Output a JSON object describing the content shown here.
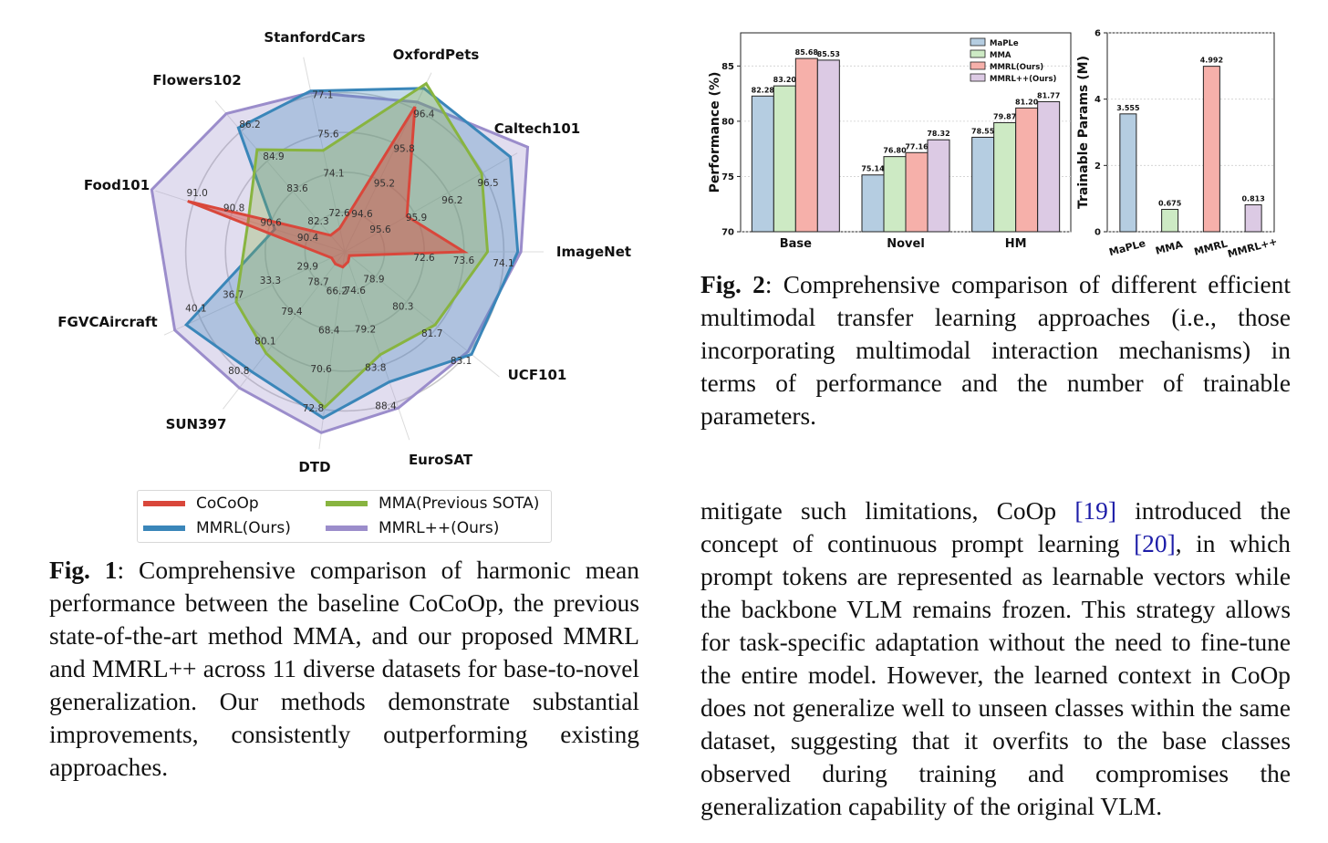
{
  "fig1": {
    "chart_data": {
      "type": "radar",
      "axes": [
        "ImageNet",
        "Caltech101",
        "OxfordPets",
        "StanfordCars",
        "Flowers102",
        "Food101",
        "FGVCAircraft",
        "SUN397",
        "DTD",
        "EuroSAT",
        "UCF101"
      ],
      "rings": [
        [
          "72.6",
          "73.6",
          "74.1"
        ],
        [
          "95.9",
          "96.2",
          "96.5"
        ],
        [
          "95.2",
          "95.8",
          "96.4"
        ],
        [
          "72.6",
          "74.1",
          "75.6",
          "77.1"
        ],
        [
          "83.6",
          "84.9",
          "86.2"
        ],
        [
          "90.4",
          "90.6",
          "90.8",
          "91.0"
        ],
        [
          "29.9",
          "33.3",
          "36.7",
          "40.1"
        ],
        [
          "78.7",
          "79.4",
          "80.1",
          "80.8"
        ],
        [
          "66.2",
          "68.4",
          "70.6",
          "72.8"
        ],
        [
          "74.6",
          "79.2",
          "83.8",
          "88.4"
        ],
        [
          "78.9",
          "80.3",
          "81.7",
          "83.1"
        ]
      ],
      "center_labels": [
        "82.3",
        "94.6",
        "95.6"
      ],
      "series": [
        {
          "name": "CoCoOp",
          "color": "#d9473b",
          "values": [
            73.1,
            95.84,
            96.43,
            72.01,
            81.71,
            91.03,
            27.74,
            78.27,
            64.85,
            71.21,
            77.64
          ]
        },
        {
          "name": "MMA(Previous SOTA)",
          "color": "#88b440",
          "values": [
            73.69,
            96.49,
            96.82,
            75.01,
            85.4,
            90.71,
            36.72,
            80.26,
            72.68,
            82.59,
            81.59
          ]
        },
        {
          "name": "MMRL(Ours)",
          "color": "#3a86b9",
          "values": [
            74.45,
            96.74,
            96.74,
            77.3,
            86.34,
            90.57,
            41.42,
            80.67,
            73.27,
            85.9,
            83.24
          ]
        },
        {
          "name": "MMRL++(Ours)",
          "color": "#9b8dcb",
          "values": [
            74.53,
            96.9,
            96.51,
            77.24,
            86.95,
            91.22,
            42.5,
            81.03,
            74.09,
            89.09,
            83.08
          ]
        }
      ]
    },
    "legend": [
      "CoCoOp",
      "MMRL(Ours)",
      "MMA(Previous SOTA)",
      "MMRL++(Ours)"
    ],
    "caption_label": "Fig. 1",
    "caption_text": ": Comprehensive comparison of harmonic mean performance between the baseline CoCoOp, the previous state-of-the-art method MMA, and our proposed MMRL and MMRL++ across 11 diverse datasets for base-to-novel generalization. Our methods demonstrate substantial improvements, consistently outperforming existing approaches."
  },
  "fig2": {
    "chart_data": [
      {
        "type": "bar",
        "categories": [
          "Base",
          "Novel",
          "HM"
        ],
        "series": [
          {
            "name": "MaPLe",
            "color": "#b5cde1",
            "values": [
              82.28,
              75.14,
              78.55
            ]
          },
          {
            "name": "MMA",
            "color": "#cdeac4",
            "values": [
              83.2,
              76.8,
              79.87
            ]
          },
          {
            "name": "MMRL(Ours)",
            "color": "#f6b0aa",
            "values": [
              85.68,
              77.16,
              81.2
            ]
          },
          {
            "name": "MMRL++(Ours)",
            "color": "#dccae4",
            "values": [
              85.53,
              78.32,
              81.77
            ]
          }
        ],
        "value_labels": [
          [
            "82.28",
            "75.14",
            "78.55"
          ],
          [
            "83.20",
            "76.80",
            "79.87"
          ],
          [
            "85.68",
            "77.16",
            "81.20"
          ],
          [
            "85.53",
            "78.32",
            "81.77"
          ]
        ],
        "ylabel": "Performance (%)",
        "ylim": [
          70,
          88
        ],
        "yticks": [
          "70",
          "75",
          "80",
          "85"
        ],
        "grid": true,
        "legend_position": "top-right"
      },
      {
        "type": "bar",
        "categories": [
          "MaPLe",
          "MMA",
          "MMRL",
          "MMRL++"
        ],
        "values": [
          3.555,
          0.675,
          4.992,
          0.813
        ],
        "value_labels": [
          "3.555",
          "0.675",
          "4.992",
          "0.813"
        ],
        "colors": [
          "#b5cde1",
          "#cdeac4",
          "#f6b0aa",
          "#dccae4"
        ],
        "ylabel": "Trainable Params (M)",
        "ylim": [
          0,
          6
        ],
        "yticks": [
          "0",
          "2",
          "4",
          "6"
        ],
        "grid": true
      }
    ],
    "caption_label": "Fig. 2",
    "caption_text": ": Comprehensive comparison of different efficient multimodal transfer learning approaches (i.e., those incorporating multimodal interaction mechanisms) in terms of performance and the number of trainable parameters."
  },
  "body": {
    "t1": "mitigate such limitations, CoOp ",
    "c1": "[19]",
    "t2": " introduced the concept of continuous prompt learning ",
    "c2": "[20]",
    "t3": ", in which prompt tokens are represented as learnable vectors while the backbone VLM remains frozen. This strategy allows for task-specific adaptation without the need to fine-tune the entire model. However, the learned context in CoOp does not generalize well to unseen classes within the same dataset, suggesting that it overfits to the base classes observed during training and compromises the generalization capability of the original VLM."
  }
}
